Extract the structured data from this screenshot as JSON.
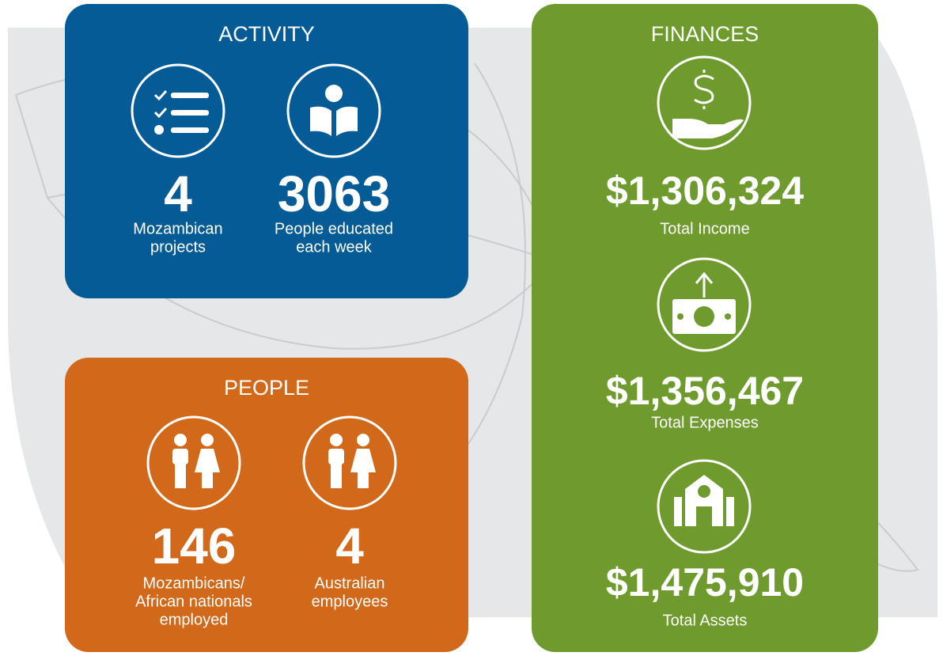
{
  "panels": [
    {
      "title": "ACTIVITY",
      "stats": [
        {
          "value": "4",
          "label": [
            "Mozambican",
            "projects"
          ]
        },
        {
          "value": "3063",
          "label": [
            "People educated",
            "each week"
          ]
        }
      ]
    },
    {
      "title": "PEOPLE",
      "stats": [
        {
          "value": "146",
          "label": [
            "Mozambicans/",
            "African nationals",
            "employed"
          ]
        },
        {
          "value": "4",
          "label": [
            "Australian",
            "employees"
          ]
        }
      ]
    },
    {
      "title": "FINANCES",
      "stats": [
        {
          "value": "$1,306,324",
          "label": [
            "Total Income"
          ]
        },
        {
          "value": "$1,356,467",
          "label": [
            "Total Expenses"
          ]
        },
        {
          "value": "$1,475,910",
          "label": [
            "Total Assets"
          ]
        }
      ]
    }
  ]
}
